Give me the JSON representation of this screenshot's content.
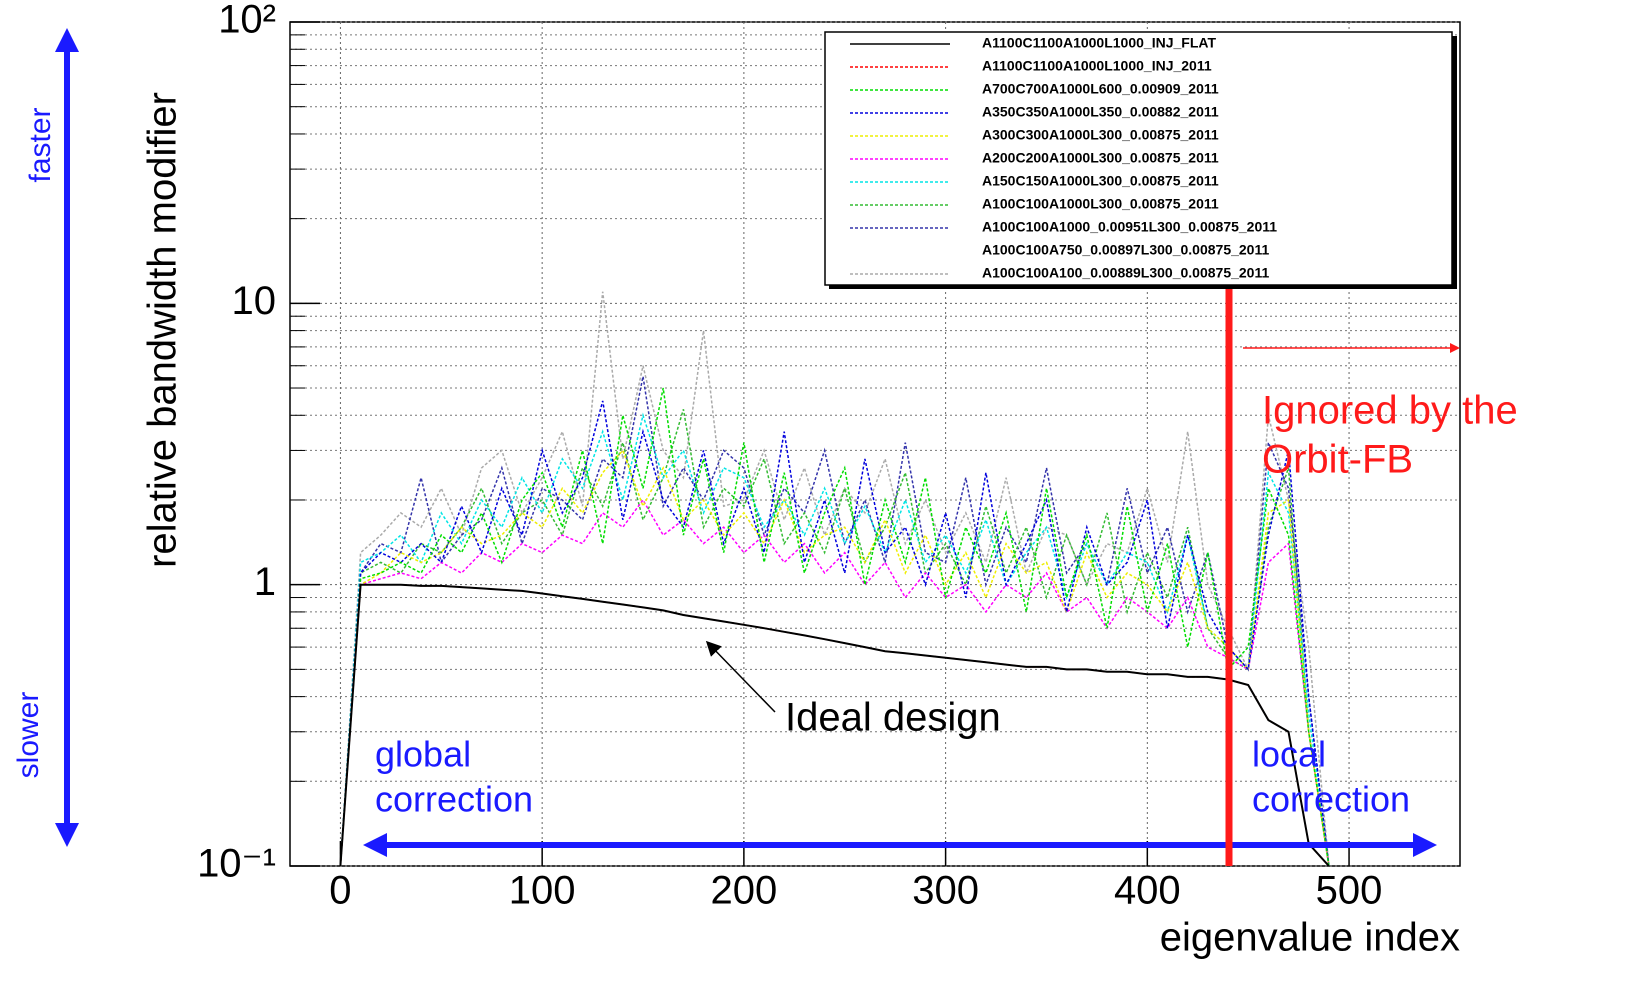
{
  "chart_data": {
    "type": "line",
    "x_label": "eigenvalue index",
    "y_label": "relative bandwidth modifier",
    "log_y": true,
    "grid": true,
    "legend": "upper right",
    "xlim": [
      -25,
      555
    ],
    "ylim": [
      0.1,
      100
    ],
    "xticks": [
      0,
      100,
      200,
      300,
      400,
      500
    ],
    "yticks": [
      {
        "value": 0.1,
        "label": "10⁻¹"
      },
      1,
      10,
      {
        "value": 100,
        "label": "10²"
      }
    ],
    "annotations": [
      "faster",
      "slower",
      "Ideal design",
      [
        "global",
        "correction"
      ],
      [
        "local",
        "correction"
      ],
      [
        "Ignored by the",
        "Orbit-FB"
      ]
    ],
    "x": [
      0,
      10,
      20,
      30,
      40,
      50,
      60,
      70,
      80,
      90,
      100,
      110,
      120,
      130,
      140,
      150,
      160,
      170,
      180,
      190,
      200,
      210,
      220,
      230,
      240,
      250,
      260,
      270,
      280,
      290,
      300,
      310,
      320,
      330,
      340,
      350,
      360,
      370,
      380,
      390,
      400,
      410,
      420,
      430,
      440,
      450,
      460,
      470,
      480,
      490
    ],
    "series": [
      {
        "name": "A1100C1100A1000L1000_INJ_FLAT",
        "color": "#000000",
        "dashed": false,
        "values": [
          0.1,
          1.0,
          1.0,
          1.0,
          0.99,
          0.99,
          0.98,
          0.97,
          0.96,
          0.95,
          0.93,
          0.91,
          0.89,
          0.87,
          0.85,
          0.83,
          0.81,
          0.78,
          0.76,
          0.74,
          0.72,
          0.7,
          0.68,
          0.66,
          0.64,
          0.62,
          0.6,
          0.58,
          0.57,
          0.56,
          0.55,
          0.54,
          0.53,
          0.52,
          0.51,
          0.51,
          0.5,
          0.5,
          0.49,
          0.49,
          0.48,
          0.48,
          0.47,
          0.47,
          0.46,
          0.44,
          0.33,
          0.3,
          0.12,
          0.1
        ]
      },
      {
        "name": "A1100C1100A1000L1000_INJ_2011",
        "color": "#ff0000",
        "dashed": true,
        "values": [
          0.1,
          1.0,
          1.0,
          1.0,
          0.99,
          0.99,
          0.98,
          0.97,
          0.96,
          0.95,
          0.93,
          0.91,
          0.89,
          0.87,
          0.85,
          0.83,
          0.81,
          0.78,
          0.76,
          0.74,
          0.72,
          0.7,
          0.68,
          0.66,
          0.64,
          0.62,
          0.6,
          0.58,
          0.57,
          0.56,
          0.55,
          0.54,
          0.53,
          0.52,
          0.51,
          0.51,
          0.5,
          0.5,
          0.49,
          0.49,
          0.48,
          0.48,
          0.47,
          0.47,
          0.46,
          0.44,
          0.33,
          0.3,
          0.12,
          0.1
        ]
      },
      {
        "name": "A700C700A1000L600_0.00909_2011",
        "color": "#00dd00",
        "dashed": true,
        "values": [
          0.1,
          1.05,
          1.1,
          1.2,
          1.1,
          1.5,
          1.3,
          1.8,
          1.2,
          2.0,
          2.5,
          1.6,
          3.0,
          1.4,
          4.0,
          2.2,
          5.0,
          1.5,
          2.8,
          1.3,
          3.2,
          1.2,
          2.5,
          1.1,
          1.8,
          2.6,
          1.0,
          2.0,
          1.2,
          2.4,
          0.9,
          1.6,
          1.1,
          1.8,
          0.8,
          2.2,
          0.9,
          1.5,
          0.7,
          1.9,
          0.8,
          1.4,
          0.6,
          1.3,
          0.5,
          0.6,
          2.2,
          1.5,
          0.3,
          0.1
        ]
      },
      {
        "name": "A350C350A1000L350_0.00882_2011",
        "color": "#0000dd",
        "dashed": true,
        "values": [
          0.1,
          1.1,
          1.3,
          1.2,
          1.4,
          1.2,
          1.9,
          1.3,
          2.2,
          1.5,
          3.0,
          1.8,
          2.4,
          4.5,
          1.7,
          3.5,
          2.0,
          1.6,
          3.0,
          1.4,
          2.2,
          1.3,
          3.5,
          1.2,
          2.0,
          1.1,
          2.8,
          1.3,
          1.6,
          1.0,
          1.8,
          0.9,
          2.5,
          1.0,
          1.4,
          2.0,
          0.8,
          1.6,
          1.0,
          1.2,
          2.0,
          0.7,
          1.5,
          0.8,
          0.6,
          0.5,
          1.5,
          3.0,
          0.4,
          0.1
        ]
      },
      {
        "name": "A300C300A1000L300_0.00875_2011",
        "color": "#eeee00",
        "dashed": true,
        "values": [
          0.1,
          1.0,
          1.1,
          1.3,
          1.2,
          1.3,
          1.6,
          1.4,
          1.5,
          1.8,
          1.6,
          2.2,
          1.8,
          2.5,
          3.0,
          1.9,
          2.6,
          1.7,
          2.0,
          1.5,
          1.8,
          1.4,
          2.0,
          1.3,
          1.5,
          1.6,
          1.2,
          1.7,
          1.1,
          1.5,
          1.0,
          1.3,
          0.9,
          1.4,
          1.1,
          1.2,
          0.8,
          1.3,
          0.9,
          1.1,
          1.0,
          0.8,
          1.2,
          0.7,
          0.6,
          0.5,
          1.8,
          2.0,
          0.3,
          0.1
        ]
      },
      {
        "name": "A200C200A1000L300_0.00875_2011",
        "color": "#ff00ff",
        "dashed": true,
        "values": [
          0.1,
          1.0,
          1.05,
          1.1,
          1.05,
          1.2,
          1.1,
          1.3,
          1.2,
          1.4,
          1.3,
          1.5,
          1.4,
          1.8,
          1.6,
          2.0,
          1.5,
          1.7,
          1.4,
          1.6,
          1.3,
          1.5,
          1.2,
          1.4,
          1.1,
          1.3,
          1.0,
          1.2,
          0.9,
          1.1,
          0.9,
          1.0,
          0.8,
          1.0,
          0.9,
          1.1,
          0.8,
          0.9,
          0.7,
          0.9,
          0.8,
          0.7,
          0.9,
          0.6,
          0.55,
          0.5,
          1.2,
          1.4,
          0.3,
          0.1
        ]
      },
      {
        "name": "A150C150A1000L300_0.00875_2011",
        "color": "#00e5e5",
        "dashed": true,
        "values": [
          0.1,
          1.2,
          1.3,
          1.5,
          1.2,
          1.8,
          1.4,
          2.0,
          1.6,
          2.4,
          1.8,
          2.8,
          2.2,
          3.5,
          2.0,
          4.0,
          2.4,
          3.0,
          1.8,
          2.6,
          2.4,
          1.6,
          2.0,
          1.5,
          2.2,
          1.4,
          1.9,
          1.3,
          2.0,
          1.2,
          1.5,
          1.1,
          1.7,
          1.0,
          1.3,
          1.6,
          0.9,
          1.4,
          1.0,
          1.3,
          1.2,
          0.8,
          1.5,
          0.7,
          0.6,
          0.5,
          2.5,
          1.8,
          0.35,
          0.1
        ]
      },
      {
        "name": "A100C100A1000L300_0.00875_2011",
        "color": "#33bb33",
        "dashed": true,
        "values": [
          0.1,
          1.1,
          1.2,
          1.1,
          1.4,
          1.3,
          1.6,
          2.2,
          1.4,
          1.8,
          2.0,
          1.5,
          2.6,
          1.9,
          3.2,
          1.7,
          2.4,
          4.2,
          1.6,
          2.2,
          1.9,
          2.8,
          1.4,
          1.8,
          1.3,
          2.2,
          1.2,
          1.6,
          2.5,
          1.1,
          1.4,
          1.0,
          1.9,
          1.1,
          1.6,
          0.9,
          1.5,
          1.0,
          1.8,
          0.8,
          1.3,
          0.9,
          1.6,
          0.7,
          0.55,
          0.5,
          1.6,
          2.6,
          0.3,
          0.1
        ]
      },
      {
        "name": "A100C100A1000_0.00951L300_0.00875_2011",
        "color": "#3333aa",
        "dashed": true,
        "values": [
          0.1,
          1.1,
          1.4,
          1.3,
          2.4,
          1.2,
          1.5,
          1.7,
          2.6,
          1.4,
          2.2,
          2.0,
          1.7,
          2.8,
          2.4,
          5.5,
          1.9,
          2.6,
          2.0,
          3.0,
          2.6,
          1.5,
          2.2,
          1.8,
          3.0,
          1.4,
          2.0,
          1.2,
          3.2,
          1.3,
          1.2,
          2.4,
          1.0,
          1.6,
          1.2,
          2.6,
          1.1,
          1.4,
          1.0,
          2.2,
          1.1,
          1.6,
          0.8,
          1.3,
          0.6,
          0.5,
          3.2,
          2.2,
          0.4,
          0.1
        ]
      },
      {
        "name": "A100C100A750_0.00897L300_0.00875_2011",
        "color": "#ffffff",
        "dashed": true,
        "values": [
          0.1,
          1.0,
          1.0,
          1.0,
          0.99,
          0.99,
          0.98,
          0.97,
          0.96,
          0.95,
          0.93,
          0.91,
          0.89,
          0.87,
          0.85,
          0.83,
          0.81,
          0.78,
          0.76,
          0.74,
          0.72,
          0.7,
          0.68,
          0.66,
          0.64,
          0.62,
          0.6,
          0.58,
          0.57,
          0.56,
          0.55,
          0.54,
          0.53,
          0.52,
          0.51,
          0.51,
          0.5,
          0.5,
          0.49,
          0.49,
          0.48,
          0.48,
          0.47,
          0.47,
          0.46,
          0.44,
          0.33,
          0.3,
          0.12,
          0.1
        ]
      },
      {
        "name": "A100C100A100_0.00889L300_0.00875_2011",
        "color": "#aaaaaa",
        "dashed": true,
        "values": [
          0.1,
          1.3,
          1.5,
          1.8,
          1.6,
          2.2,
          1.5,
          2.6,
          3.0,
          1.8,
          2.4,
          3.5,
          1.9,
          11,
          2.8,
          6,
          3.0,
          2.4,
          8,
          1.9,
          2.0,
          3.0,
          1.7,
          2.6,
          1.5,
          2.2,
          1.8,
          2.8,
          1.4,
          2.0,
          1.3,
          1.8,
          1.2,
          2.4,
          1.1,
          1.6,
          1.5,
          1.0,
          1.4,
          1.3,
          2.2,
          1.2,
          3.5,
          1.0,
          0.7,
          0.5,
          4.0,
          2.0,
          0.6,
          0.1
        ]
      }
    ]
  }
}
